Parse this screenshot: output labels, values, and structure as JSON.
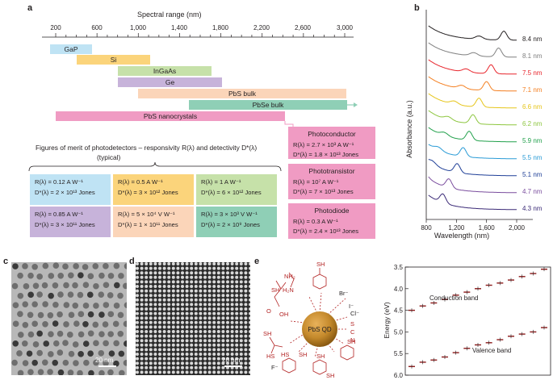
{
  "panels": {
    "a": "a",
    "b": "b",
    "c": "c",
    "d": "d",
    "e": "e"
  },
  "panel_a": {
    "axis_title": "Spectral range (nm)",
    "ticks": [
      "200",
      "600",
      "1,000",
      "1,400",
      "1,800",
      "2,200",
      "2,600",
      "3,000"
    ],
    "bars": [
      {
        "label": "GaP",
        "color": "#bfe3f4"
      },
      {
        "label": "Si",
        "color": "#fbd47b"
      },
      {
        "label": "InGaAs",
        "color": "#c6e1a9"
      },
      {
        "label": "Ge",
        "color": "#c7b3da"
      },
      {
        "label": "PbS bulk",
        "color": "#fbd5b9"
      },
      {
        "label": "PbSe bulk",
        "color": "#8fcfb6"
      },
      {
        "label": "PbS nanocrystals",
        "color": "#f09bc3"
      }
    ],
    "figures_of_merit": "Figures of merit of photodetectors – responsivity R(λ) and detectivity D*(λ)",
    "typical": "(typical)",
    "merit_boxes": [
      {
        "r": "R(λ) = 0.12 A W⁻¹",
        "d": "D*(λ) = 2 × 10¹³ Jones",
        "color": "#bfe3f4"
      },
      {
        "r": "R(λ) = 0.5 A W⁻¹",
        "d": "D*(λ) = 3 × 10¹² Jones",
        "color": "#fbd47b"
      },
      {
        "r": "R(λ) = 1 A W⁻¹",
        "d": "D*(λ) = 6 × 10¹² Jones",
        "color": "#c6e1a9"
      },
      {
        "r": "R(λ) = 0.85 A W⁻¹",
        "d": "D*(λ) = 3 × 10¹¹ Jones",
        "color": "#c7b3da"
      },
      {
        "r": "R(λ) = 5 × 10⁴ V W⁻¹",
        "d": "D*(λ) = 1 × 10¹¹ Jones",
        "color": "#fbd5b9"
      },
      {
        "r": "R(λ) = 3 × 10³ V W⁻¹",
        "d": "D*(λ) = 2 × 10⁹ Jones",
        "color": "#8fcfb6"
      }
    ],
    "devices": [
      {
        "title": "Photoconductor",
        "r": "R(λ) = 2.7 × 10³ A W⁻¹",
        "d": "D*(λ) = 1.8 × 10¹³ Jones"
      },
      {
        "title": "Phototransistor",
        "r": "R(λ) = 10⁷ A W⁻¹",
        "d": "D*(λ) = 7 × 10¹³ Jones"
      },
      {
        "title": "Photodiode",
        "r": "R(λ) = 0.3 A W⁻¹",
        "d": "D*(λ) = 2.4 × 10¹³ Jones"
      }
    ]
  },
  "chart_data": [
    {
      "type": "line",
      "panel": "b",
      "xlabel": "Wavelength (nm)",
      "ylabel": "Absorbance (a.u.)",
      "xticks": [
        "800",
        "1,200",
        "1,600",
        "2,000"
      ],
      "xlim": [
        800,
        2000
      ],
      "series": [
        {
          "name": "8.4 nm",
          "peak_nm": 1830,
          "color": "#231f20"
        },
        {
          "name": "8.1 nm",
          "peak_nm": 1760,
          "color": "#7f7f7f"
        },
        {
          "name": "7.5 nm",
          "peak_nm": 1660,
          "color": "#e8242b"
        },
        {
          "name": "7.1 nm",
          "peak_nm": 1600,
          "color": "#f47f20"
        },
        {
          "name": "6.6 nm",
          "peak_nm": 1500,
          "color": "#e6c51a"
        },
        {
          "name": "6.2 nm",
          "peak_nm": 1420,
          "color": "#8dc63f"
        },
        {
          "name": "5.9 nm",
          "peak_nm": 1370,
          "color": "#21a04b"
        },
        {
          "name": "5.5 nm",
          "peak_nm": 1290,
          "color": "#2a9bd6"
        },
        {
          "name": "5.1 nm",
          "peak_nm": 1210,
          "color": "#1f3f97"
        },
        {
          "name": "4.7 nm",
          "peak_nm": 1100,
          "color": "#7a4d9e"
        },
        {
          "name": "4.3 nm",
          "peak_nm": 1020,
          "color": "#3b2a77"
        }
      ]
    },
    {
      "type": "scatter",
      "panel": "e-right",
      "ylabel": "Energy (eV)",
      "yticks": [
        "3.5",
        "4.0",
        "4.5",
        "5.0",
        "5.5",
        "6.0"
      ],
      "ylim": [
        3.5,
        6.0
      ],
      "series": [
        {
          "name": "Conduction band",
          "values": [
            4.5,
            4.4,
            4.33,
            4.25,
            4.15,
            4.08,
            4.0,
            3.92,
            3.87,
            3.8,
            3.72,
            3.65,
            3.55
          ]
        },
        {
          "name": "Valence band",
          "values": [
            5.8,
            5.7,
            5.65,
            5.58,
            5.48,
            5.38,
            5.3,
            5.25,
            5.18,
            5.1,
            5.05,
            5.0,
            4.9
          ]
        }
      ],
      "annotations": [
        "Conduction band",
        "Valence band"
      ]
    }
  ],
  "panel_c": {
    "scale_bar": "20 nm"
  },
  "panel_d": {
    "scale_bar": "20 nm"
  },
  "panel_e": {
    "qd_label": "PbS QD",
    "ligands": [
      "SH",
      "NH₂",
      "H₂N",
      "Br⁻",
      "Cl⁻",
      "I⁻",
      "S",
      "C",
      "N",
      "SH",
      "O",
      "OH",
      "SH",
      "HS",
      "F⁻",
      "HS",
      "SH",
      "SH",
      "SH",
      "SH"
    ],
    "ligand_color": "#b22222"
  }
}
